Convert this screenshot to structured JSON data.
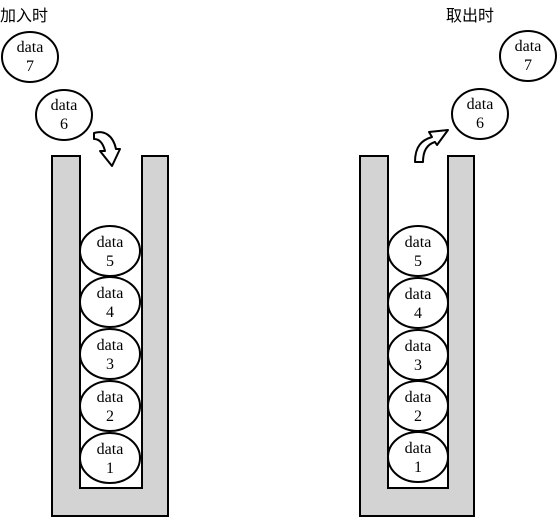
{
  "left_panel": {
    "title": "加入时",
    "outside_items": [
      {
        "label": "data",
        "index": "7"
      },
      {
        "label": "data",
        "index": "6"
      }
    ],
    "stack_items": [
      {
        "label": "data",
        "index": "5"
      },
      {
        "label": "data",
        "index": "4"
      },
      {
        "label": "data",
        "index": "3"
      },
      {
        "label": "data",
        "index": "2"
      },
      {
        "label": "data",
        "index": "1"
      }
    ]
  },
  "right_panel": {
    "title": "取出时",
    "outside_items": [
      {
        "label": "data",
        "index": "7"
      },
      {
        "label": "data",
        "index": "6"
      }
    ],
    "stack_items": [
      {
        "label": "data",
        "index": "5"
      },
      {
        "label": "data",
        "index": "4"
      },
      {
        "label": "data",
        "index": "3"
      },
      {
        "label": "data",
        "index": "2"
      },
      {
        "label": "data",
        "index": "1"
      }
    ]
  },
  "colors": {
    "container_fill": "#d3d3d3",
    "stroke": "#000000",
    "node_fill": "#ffffff"
  }
}
